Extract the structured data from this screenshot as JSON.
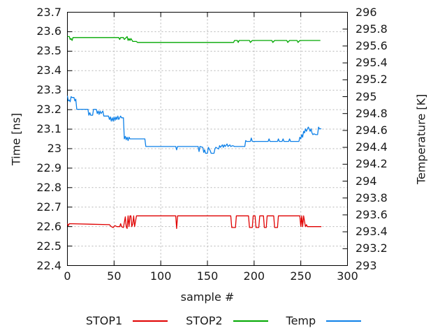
{
  "chart_data": {
    "type": "line",
    "title": "",
    "xlabel": "sample #",
    "ylabel_left": "Time [ns]",
    "ylabel_right": "Temperature [K]",
    "x_range": [
      0,
      300
    ],
    "y_left_range": [
      22.4,
      23.7
    ],
    "y_right_range": [
      293,
      296
    ],
    "x_tick_labels": [
      "0",
      "50",
      "100",
      "150",
      "200",
      "250",
      "300"
    ],
    "y_left_tick_labels": [
      "22.4",
      "22.5",
      "22.6",
      "22.7",
      "22.8",
      "22.9",
      "23",
      "23.1",
      "23.2",
      "23.3",
      "23.4",
      "23.5",
      "23.6",
      "23.7"
    ],
    "y_right_tick_labels": [
      "293",
      "293.2",
      "293.4",
      "293.6",
      "293.8",
      "294",
      "294.2",
      "294.4",
      "294.6",
      "294.8",
      "295",
      "295.2",
      "295.4",
      "295.6",
      "295.8",
      "296"
    ],
    "grid": true,
    "grid_color": "#b5b5b5",
    "border_color": "#000000",
    "legend_position": "bottom-center",
    "series": [
      {
        "name": "STOP1",
        "color": "#e00000",
        "axis": "left",
        "unit": "ns",
        "points": [
          [
            0,
            22.615
          ],
          [
            1,
            22.605
          ],
          [
            2,
            22.615
          ],
          [
            45,
            22.61
          ],
          [
            47,
            22.6
          ],
          [
            49,
            22.595
          ],
          [
            51,
            22.605
          ],
          [
            53,
            22.6
          ],
          [
            56,
            22.6
          ],
          [
            57,
            22.615
          ],
          [
            58,
            22.6
          ],
          [
            60,
            22.595
          ],
          [
            62,
            22.65
          ],
          [
            63,
            22.6
          ],
          [
            64,
            22.59
          ],
          [
            65,
            22.655
          ],
          [
            66,
            22.6
          ],
          [
            67,
            22.655
          ],
          [
            68,
            22.655
          ],
          [
            69,
            22.6
          ],
          [
            70,
            22.615
          ],
          [
            71,
            22.655
          ],
          [
            72,
            22.6
          ],
          [
            74,
            22.655
          ],
          [
            116,
            22.655
          ],
          [
            117,
            22.59
          ],
          [
            118,
            22.655
          ],
          [
            175,
            22.655
          ],
          [
            176,
            22.595
          ],
          [
            180,
            22.595
          ],
          [
            181,
            22.655
          ],
          [
            194,
            22.655
          ],
          [
            195,
            22.595
          ],
          [
            198,
            22.595
          ],
          [
            199,
            22.655
          ],
          [
            201,
            22.655
          ],
          [
            202,
            22.595
          ],
          [
            205,
            22.595
          ],
          [
            206,
            22.655
          ],
          [
            210,
            22.655
          ],
          [
            211,
            22.595
          ],
          [
            213,
            22.595
          ],
          [
            214,
            22.655
          ],
          [
            221,
            22.655
          ],
          [
            222,
            22.595
          ],
          [
            225,
            22.595
          ],
          [
            226,
            22.655
          ],
          [
            249,
            22.655
          ],
          [
            250,
            22.6
          ],
          [
            251,
            22.655
          ],
          [
            252,
            22.6
          ],
          [
            253,
            22.655
          ],
          [
            255,
            22.6
          ],
          [
            256,
            22.61
          ],
          [
            257,
            22.6
          ],
          [
            272,
            22.6
          ]
        ]
      },
      {
        "name": "STOP2",
        "color": "#00a800",
        "axis": "left",
        "unit": "ns",
        "points": [
          [
            0,
            23.575
          ],
          [
            2,
            23.575
          ],
          [
            3,
            23.56
          ],
          [
            4,
            23.565
          ],
          [
            5,
            23.555
          ],
          [
            6,
            23.57
          ],
          [
            8,
            23.57
          ],
          [
            55,
            23.57
          ],
          [
            56,
            23.56
          ],
          [
            57,
            23.57
          ],
          [
            60,
            23.57
          ],
          [
            61,
            23.56
          ],
          [
            63,
            23.57
          ],
          [
            64,
            23.575
          ],
          [
            65,
            23.555
          ],
          [
            66,
            23.565
          ],
          [
            67,
            23.555
          ],
          [
            68,
            23.565
          ],
          [
            70,
            23.55
          ],
          [
            74,
            23.55
          ],
          [
            75,
            23.545
          ],
          [
            178,
            23.545
          ],
          [
            179,
            23.555
          ],
          [
            182,
            23.555
          ],
          [
            183,
            23.545
          ],
          [
            184,
            23.555
          ],
          [
            195,
            23.555
          ],
          [
            196,
            23.545
          ],
          [
            198,
            23.555
          ],
          [
            219,
            23.555
          ],
          [
            220,
            23.545
          ],
          [
            222,
            23.555
          ],
          [
            235,
            23.555
          ],
          [
            236,
            23.545
          ],
          [
            238,
            23.555
          ],
          [
            246,
            23.555
          ],
          [
            247,
            23.545
          ],
          [
            249,
            23.555
          ],
          [
            271,
            23.555
          ]
        ]
      },
      {
        "name": "Temp",
        "color": "#0d80e8",
        "axis": "right",
        "unit": "K",
        "points": [
          [
            0,
            295.01
          ],
          [
            1,
            294.95
          ],
          [
            2,
            294.96
          ],
          [
            3,
            294.94
          ],
          [
            4,
            295.0
          ],
          [
            5,
            294.99
          ],
          [
            7,
            294.99
          ],
          [
            8,
            294.95
          ],
          [
            9,
            294.97
          ],
          [
            10,
            294.85
          ],
          [
            22,
            294.85
          ],
          [
            23,
            294.78
          ],
          [
            24,
            294.81
          ],
          [
            25,
            294.78
          ],
          [
            27,
            294.78
          ],
          [
            28,
            294.85
          ],
          [
            31,
            294.85
          ],
          [
            32,
            294.8
          ],
          [
            33,
            294.83
          ],
          [
            34,
            294.79
          ],
          [
            35,
            294.83
          ],
          [
            36,
            294.8
          ],
          [
            38,
            294.83
          ],
          [
            39,
            294.77
          ],
          [
            44,
            294.77
          ],
          [
            45,
            294.73
          ],
          [
            46,
            294.76
          ],
          [
            47,
            294.71
          ],
          [
            48,
            294.75
          ],
          [
            49,
            294.71
          ],
          [
            50,
            294.76
          ],
          [
            51,
            294.72
          ],
          [
            52,
            294.76
          ],
          [
            53,
            294.73
          ],
          [
            54,
            294.77
          ],
          [
            55,
            294.73
          ],
          [
            57,
            294.77
          ],
          [
            58,
            294.75
          ],
          [
            60,
            294.75
          ],
          [
            61,
            294.5
          ],
          [
            62,
            294.53
          ],
          [
            63,
            294.49
          ],
          [
            64,
            294.52
          ],
          [
            65,
            294.48
          ],
          [
            66,
            294.52
          ],
          [
            67,
            294.5
          ],
          [
            83,
            294.5
          ],
          [
            84,
            294.41
          ],
          [
            116,
            294.41
          ],
          [
            117,
            294.37
          ],
          [
            118,
            294.41
          ],
          [
            140,
            294.41
          ],
          [
            141,
            294.35
          ],
          [
            142,
            294.41
          ],
          [
            145,
            294.4
          ],
          [
            146,
            294.34
          ],
          [
            147,
            294.37
          ],
          [
            148,
            294.33
          ],
          [
            150,
            294.33
          ],
          [
            151,
            294.4
          ],
          [
            153,
            294.36
          ],
          [
            154,
            294.33
          ],
          [
            157,
            294.33
          ],
          [
            158,
            294.38
          ],
          [
            159,
            294.4
          ],
          [
            162,
            294.38
          ],
          [
            163,
            294.42
          ],
          [
            164,
            294.4
          ],
          [
            166,
            294.43
          ],
          [
            167,
            294.4
          ],
          [
            168,
            294.43
          ],
          [
            169,
            294.41
          ],
          [
            171,
            294.44
          ],
          [
            172,
            294.41
          ],
          [
            174,
            294.43
          ],
          [
            175,
            294.41
          ],
          [
            177,
            294.42
          ],
          [
            179,
            294.41
          ],
          [
            190,
            294.41
          ],
          [
            191,
            294.48
          ],
          [
            192,
            294.47
          ],
          [
            196,
            294.47
          ],
          [
            197,
            294.51
          ],
          [
            198,
            294.47
          ],
          [
            215,
            294.47
          ],
          [
            216,
            294.5
          ],
          [
            217,
            294.47
          ],
          [
            225,
            294.47
          ],
          [
            226,
            294.5
          ],
          [
            227,
            294.47
          ],
          [
            230,
            294.47
          ],
          [
            231,
            294.5
          ],
          [
            232,
            294.47
          ],
          [
            237,
            294.47
          ],
          [
            238,
            294.5
          ],
          [
            239,
            294.47
          ],
          [
            248,
            294.47
          ],
          [
            249,
            294.52
          ],
          [
            250,
            294.5
          ],
          [
            251,
            294.55
          ],
          [
            252,
            294.52
          ],
          [
            253,
            294.59
          ],
          [
            254,
            294.57
          ],
          [
            255,
            294.62
          ],
          [
            256,
            294.59
          ],
          [
            258,
            294.64
          ],
          [
            259,
            294.62
          ],
          [
            260,
            294.59
          ],
          [
            261,
            294.62
          ],
          [
            262,
            294.57
          ],
          [
            263,
            294.55
          ],
          [
            264,
            294.56
          ],
          [
            266,
            294.55
          ],
          [
            268,
            294.55
          ],
          [
            269,
            294.64
          ],
          [
            270,
            294.62
          ],
          [
            272,
            294.62
          ]
        ]
      }
    ]
  }
}
